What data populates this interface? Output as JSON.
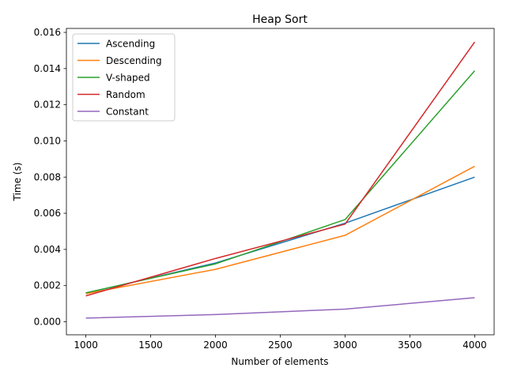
{
  "chart_data": {
    "type": "line",
    "title": "Heap Sort",
    "xlabel": "Number of elements",
    "ylabel": "Time (s)",
    "x": [
      1000,
      2000,
      3000,
      4000
    ],
    "xlim": [
      850,
      4150
    ],
    "ylim": [
      -0.00072,
      0.01622
    ],
    "xticks": [
      1000,
      1500,
      2000,
      2500,
      3000,
      3500,
      4000
    ],
    "xtick_labels": [
      "1000",
      "1500",
      "2000",
      "2500",
      "3000",
      "3500",
      "4000"
    ],
    "yticks": [
      0,
      0.002,
      0.004,
      0.006,
      0.008,
      0.01,
      0.012,
      0.014,
      0.016
    ],
    "ytick_labels": [
      "0.000",
      "0.002",
      "0.004",
      "0.006",
      "0.008",
      "0.010",
      "0.012",
      "0.014",
      "0.016"
    ],
    "grid": false,
    "legend_position": "upper-left",
    "series": [
      {
        "name": "Ascending",
        "color": "#1f77b4",
        "values": [
          0.00158,
          0.00325,
          0.00545,
          0.008
        ]
      },
      {
        "name": "Descending",
        "color": "#ff7f0e",
        "values": [
          0.00155,
          0.0029,
          0.00478,
          0.0086
        ]
      },
      {
        "name": "V-shaped",
        "color": "#2ca02c",
        "values": [
          0.0016,
          0.0032,
          0.00565,
          0.01388
        ]
      },
      {
        "name": "Random",
        "color": "#d62728",
        "values": [
          0.00143,
          0.0035,
          0.0054,
          0.01547
        ]
      },
      {
        "name": "Constant",
        "color": "#9467bd",
        "values": [
          0.0002,
          0.0004,
          0.0007,
          0.00133
        ]
      }
    ]
  }
}
